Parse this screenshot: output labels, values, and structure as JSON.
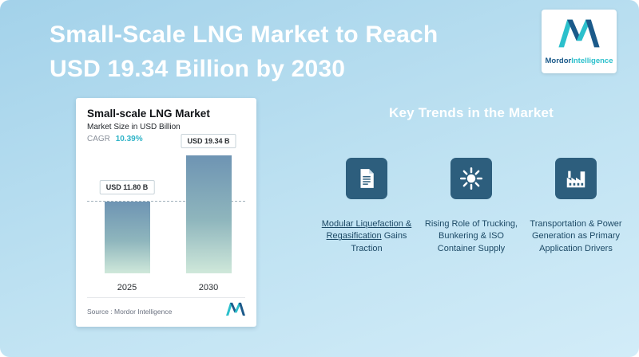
{
  "page": {
    "title_line1": "Small-Scale LNG Market to Reach",
    "title_line2": "USD 19.34 Billion by 2030"
  },
  "brand": {
    "name_primary": "Mordor",
    "name_secondary": "Intelligence",
    "logo_icon": "mordor-m-logo"
  },
  "chart_card": {
    "title": "Small-scale LNG Market",
    "subtitle": "Market Size in USD Billion",
    "cagr_label": "CAGR",
    "cagr_value": "10.39%",
    "source": "Source : Mordor Intelligence"
  },
  "chart_data": {
    "type": "bar",
    "title": "Small-scale LNG Market",
    "subtitle": "Market Size in USD Billion",
    "cagr": "10.39%",
    "categories": [
      "2025",
      "2030"
    ],
    "values": [
      11.8,
      19.34
    ],
    "value_labels": [
      "USD 11.80 B",
      "USD 19.34 B"
    ],
    "ylabel": "Market Size in USD Billion",
    "ylim": [
      0,
      20
    ],
    "grid": false,
    "legend": "none",
    "annotations": [
      "dashed horizontal reference line at 11.80 level"
    ]
  },
  "key_trends": {
    "heading": "Key Trends in the Market",
    "items": [
      {
        "icon": "document-icon",
        "link_text": "Modular Liquefaction & Regasification",
        "rest_text": " Gains Traction"
      },
      {
        "icon": "sun-icon",
        "text": "Rising Role of Trucking, Bunkering & ISO Container Supply"
      },
      {
        "icon": "factory-icon",
        "text": "Transportation & Power Generation as Primary Application Drivers"
      }
    ]
  },
  "colors": {
    "accent_teal": "#2fb3c7",
    "brand_blue": "#1b5a8a",
    "brand_teal": "#2cc0cc",
    "icon_bg": "#2d5e7d",
    "bar_top": "#6e94b3",
    "bar_bottom": "#cfe8da",
    "background_top": "#a3d2ea",
    "background_bottom": "#d2ecf8",
    "heading_text": "#ffffff",
    "trend_text": "#1d4a66"
  }
}
